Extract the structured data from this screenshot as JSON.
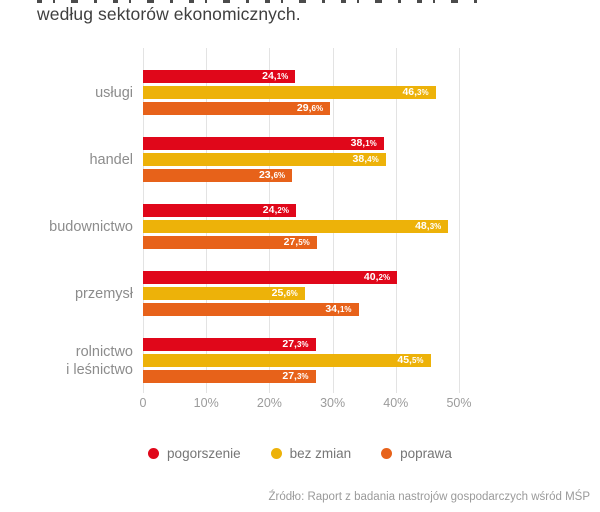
{
  "header": {
    "title_line2": "według sektorów ekonomicznych."
  },
  "chart_data": {
    "type": "bar",
    "orientation": "horizontal",
    "categories": [
      "usługi",
      "handel",
      "budownictwo",
      "przemysł",
      "rolnictwo\ni leśnictwo"
    ],
    "series": [
      {
        "name": "pogorszenie",
        "color": "#e0071a",
        "values": [
          24.1,
          38.1,
          24.2,
          40.2,
          27.3
        ]
      },
      {
        "name": "bez zmian",
        "color": "#edb209",
        "values": [
          46.3,
          38.4,
          48.3,
          25.6,
          45.5
        ]
      },
      {
        "name": "poprawa",
        "color": "#e7621a",
        "values": [
          29.6,
          23.6,
          27.5,
          34.1,
          27.3
        ]
      }
    ],
    "value_label_format": "decimal-comma-percent",
    "x_ticks": [
      "0",
      "10%",
      "20%",
      "30%",
      "40%",
      "50%"
    ],
    "xlim": [
      0,
      50
    ],
    "grid": true,
    "gridline_color": "#e3e3e3",
    "legend_position": "bottom"
  },
  "source_note": "Źródło: Raport z badania nastrojów gospodarczych wśród MŚP"
}
